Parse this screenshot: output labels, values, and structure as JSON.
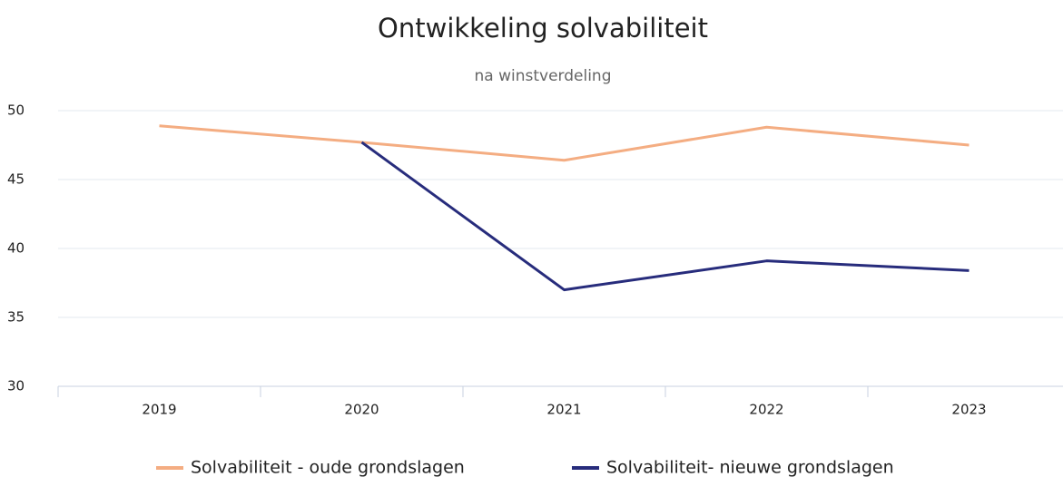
{
  "chart_data": {
    "type": "line",
    "title": "Ontwikkeling solvabiliteit",
    "subtitle": "na winstverdeling",
    "categories": [
      "2019",
      "2020",
      "2021",
      "2022",
      "2023"
    ],
    "series": [
      {
        "name": "Solvabiliteit - oude grondslagen",
        "color": "#f4ad82",
        "values": [
          48.9,
          47.7,
          46.4,
          48.8,
          47.5
        ]
      },
      {
        "name": "Solvabiliteit- nieuwe grondslagen",
        "color": "#272c7c",
        "values": [
          null,
          47.7,
          37.0,
          39.1,
          38.4
        ]
      }
    ],
    "ylim": [
      30,
      50
    ],
    "yticks": [
      30,
      35,
      40,
      45,
      50
    ],
    "grid": true,
    "legend": "bottom"
  }
}
